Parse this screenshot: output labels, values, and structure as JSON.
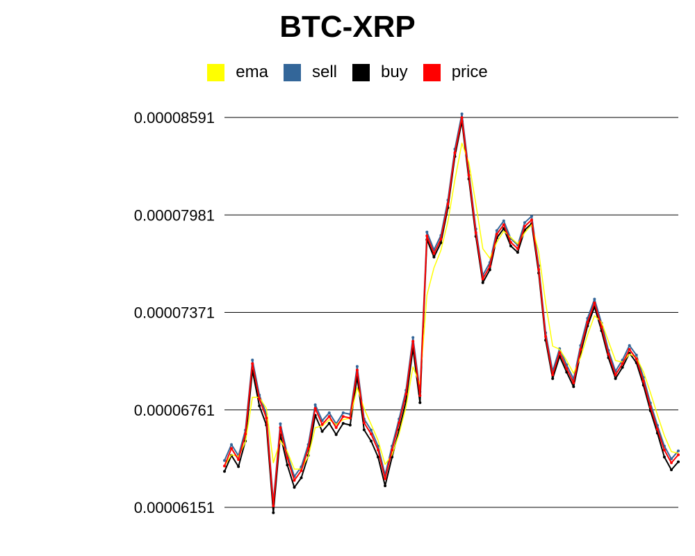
{
  "chart_data": {
    "type": "line",
    "title": "BTC-XRP",
    "xlabel": "",
    "ylabel": "",
    "ylim": [
      6.151e-05,
      8.591e-05
    ],
    "yticks": [
      "0.00008591",
      "0.00007981",
      "0.00007371",
      "0.00006761",
      "0.00006151"
    ],
    "grid": true,
    "legend_position": "top",
    "x": [
      0,
      10,
      20,
      30,
      40,
      50,
      60,
      70,
      80,
      90,
      100,
      110,
      120,
      130,
      140,
      150,
      160,
      170,
      180,
      190,
      200,
      210,
      220,
      230,
      240,
      250,
      260,
      270,
      280,
      290,
      300,
      310,
      320,
      330,
      340,
      350,
      360,
      370,
      380,
      390,
      400,
      410,
      420,
      430,
      440,
      450,
      460,
      470,
      480,
      490,
      500,
      510,
      520,
      530,
      540,
      550,
      560,
      570,
      580,
      590,
      600,
      610,
      620,
      630,
      640,
      650
    ],
    "series": [
      {
        "name": "price",
        "color": "#ff0000",
        "values": [
          6.41e-05,
          6.52e-05,
          6.45e-05,
          6.61e-05,
          7.05e-05,
          6.83e-05,
          6.71e-05,
          6.16e-05,
          6.65e-05,
          6.46e-05,
          6.32e-05,
          6.38e-05,
          6.52e-05,
          6.77e-05,
          6.67e-05,
          6.72e-05,
          6.65e-05,
          6.72e-05,
          6.71e-05,
          7.01e-05,
          6.68e-05,
          6.61e-05,
          6.51e-05,
          6.33e-05,
          6.51e-05,
          6.68e-05,
          6.86e-05,
          7.19e-05,
          6.85e-05,
          7.85e-05,
          7.74e-05,
          7.83e-05,
          8.05e-05,
          8.37e-05,
          8.59e-05,
          8.23e-05,
          7.87e-05,
          7.58e-05,
          7.66e-05,
          7.86e-05,
          7.92e-05,
          7.81e-05,
          7.77e-05,
          7.91e-05,
          7.95e-05,
          7.64e-05,
          7.22e-05,
          6.98e-05,
          7.12e-05,
          7.02e-05,
          6.93e-05,
          7.14e-05,
          7.31e-05,
          7.43e-05,
          7.28e-05,
          7.11e-05,
          6.98e-05,
          7.05e-05,
          7.14e-05,
          7.08e-05,
          6.94e-05,
          6.78e-05,
          6.64e-05,
          6.51e-05,
          6.43e-05,
          6.48e-05
        ]
      },
      {
        "name": "sell",
        "color": "#336699",
        "values": [
          6.444e-05,
          6.544e-05,
          6.474e-05,
          6.634e-05,
          7.073e-05,
          6.854e-05,
          6.734e-05,
          6.183e-05,
          6.674e-05,
          6.484e-05,
          6.344e-05,
          6.404e-05,
          6.544e-05,
          6.793e-05,
          6.694e-05,
          6.743e-05,
          6.674e-05,
          6.743e-05,
          6.734e-05,
          7.033e-05,
          6.704e-05,
          6.634e-05,
          6.534e-05,
          6.354e-05,
          6.534e-05,
          6.704e-05,
          6.884e-05,
          7.214e-05,
          6.874e-05,
          7.874e-05,
          7.763e-05,
          7.853e-05,
          8.074e-05,
          8.393e-05,
          8.613e-05,
          8.254e-05,
          7.893e-05,
          7.603e-05,
          7.683e-05,
          7.883e-05,
          7.944e-05,
          7.833e-05,
          7.793e-05,
          7.933e-05,
          7.973e-05,
          7.663e-05,
          7.243e-05,
          7.003e-05,
          7.144e-05,
          7.043e-05,
          6.954e-05,
          7.164e-05,
          7.334e-05,
          7.454e-05,
          7.304e-05,
          7.133e-05,
          7.003e-05,
          7.073e-05,
          7.164e-05,
          7.104e-05,
          6.964e-05,
          6.804e-05,
          6.664e-05,
          6.534e-05,
          6.454e-05,
          6.504e-05
        ]
      },
      {
        "name": "buy",
        "color": "#000000",
        "values": [
          6.376e-05,
          6.476e-05,
          6.406e-05,
          6.566e-05,
          7.007e-05,
          6.786e-05,
          6.666e-05,
          6.117e-05,
          6.606e-05,
          6.416e-05,
          6.276e-05,
          6.336e-05,
          6.476e-05,
          6.727e-05,
          6.626e-05,
          6.677e-05,
          6.606e-05,
          6.677e-05,
          6.666e-05,
          6.967e-05,
          6.636e-05,
          6.566e-05,
          6.466e-05,
          6.286e-05,
          6.466e-05,
          6.636e-05,
          6.816e-05,
          7.146e-05,
          6.806e-05,
          7.826e-05,
          7.717e-05,
          7.807e-05,
          8.026e-05,
          8.347e-05,
          8.567e-05,
          8.206e-05,
          7.847e-05,
          7.557e-05,
          7.637e-05,
          7.837e-05,
          7.896e-05,
          7.787e-05,
          7.747e-05,
          7.887e-05,
          7.927e-05,
          7.617e-05,
          7.197e-05,
          6.957e-05,
          7.096e-05,
          6.997e-05,
          6.906e-05,
          7.116e-05,
          7.286e-05,
          7.406e-05,
          7.256e-05,
          7.087e-05,
          6.957e-05,
          7.027e-05,
          7.116e-05,
          7.056e-05,
          6.916e-05,
          6.756e-05,
          6.616e-05,
          6.466e-05,
          6.386e-05,
          6.436e-05
        ]
      },
      {
        "name": "ema",
        "color": "#ffff00",
        "values": [
          6.41e-05,
          6.48e-05,
          6.47e-05,
          6.56e-05,
          6.84e-05,
          6.84e-05,
          6.77e-05,
          6.43e-05,
          6.57e-05,
          6.5e-05,
          6.39e-05,
          6.39e-05,
          6.47e-05,
          6.65e-05,
          6.66e-05,
          6.7e-05,
          6.67e-05,
          6.7e-05,
          6.71e-05,
          6.9e-05,
          6.77e-05,
          6.67e-05,
          6.57e-05,
          6.42e-05,
          6.48e-05,
          6.61e-05,
          6.78e-05,
          7.03e-05,
          6.92e-05,
          7.48e-05,
          7.65e-05,
          7.76e-05,
          7.94e-05,
          8.2e-05,
          8.43e-05,
          8.31e-05,
          8.05e-05,
          7.77e-05,
          7.71e-05,
          7.81e-05,
          7.88e-05,
          7.84e-05,
          7.8e-05,
          7.87e-05,
          7.92e-05,
          7.75e-05,
          7.43e-05,
          7.16e-05,
          7.14e-05,
          7.07e-05,
          6.99e-05,
          7.09e-05,
          7.23e-05,
          7.35e-05,
          7.31e-05,
          7.19e-05,
          7.07e-05,
          7.06e-05,
          7.11e-05,
          7.09e-05,
          7e-05,
          6.87e-05,
          6.73e-05,
          6.6e-05,
          6.5e-05,
          6.49e-05
        ]
      }
    ]
  },
  "legend_order": [
    "ema",
    "sell",
    "buy",
    "price"
  ]
}
